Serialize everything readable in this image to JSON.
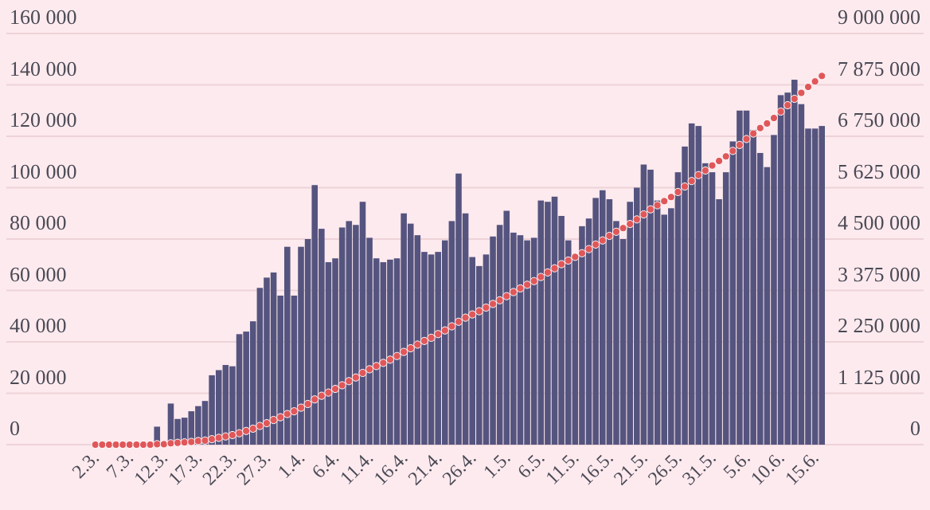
{
  "chart_data": {
    "type": "bar",
    "categories": [
      "2.3.",
      null,
      null,
      null,
      null,
      "7.3.",
      null,
      null,
      null,
      null,
      "12.3.",
      null,
      null,
      null,
      null,
      "17.3.",
      null,
      null,
      null,
      null,
      "22.3.",
      null,
      null,
      null,
      null,
      "27.3.",
      null,
      null,
      null,
      null,
      "1.4.",
      null,
      null,
      null,
      null,
      "6.4.",
      null,
      null,
      null,
      null,
      "11.4.",
      null,
      null,
      null,
      null,
      "16.4.",
      null,
      null,
      null,
      null,
      "21.4.",
      null,
      null,
      null,
      null,
      "26.4.",
      null,
      null,
      null,
      null,
      "1.5.",
      null,
      null,
      null,
      null,
      "6.5.",
      null,
      null,
      null,
      null,
      "11.5.",
      null,
      null,
      null,
      null,
      "16.5.",
      null,
      null,
      null,
      null,
      "21.5.",
      null,
      null,
      null,
      null,
      "26.5.",
      null,
      null,
      null,
      null,
      "31.5.",
      null,
      null,
      null,
      null,
      "5.6.",
      null,
      null,
      null,
      null,
      "10.6.",
      null,
      null,
      null,
      null,
      "15.6.",
      null
    ],
    "series": [
      {
        "color": "#55547f",
        "values": [
          0,
          0,
          0,
          0,
          0,
          0,
          0,
          500,
          null,
          7000,
          null,
          16000,
          10000,
          10500,
          13000,
          15000,
          17000,
          27000,
          29000,
          31000,
          30500,
          43000,
          44000,
          48000,
          61000,
          65000,
          67000,
          58000,
          77000,
          58000,
          77000,
          80000,
          101000,
          84000,
          71000,
          72500,
          84500,
          87000,
          85500,
          94500,
          80500,
          72500,
          71000,
          72000,
          72500,
          90000,
          86000,
          81500,
          75000,
          74000,
          75000,
          79500,
          87000,
          105500,
          90000,
          73000,
          69500,
          74000,
          81000,
          85500,
          91000,
          82500,
          81500,
          79500,
          80500,
          95000,
          94500,
          96500,
          89000,
          79500,
          73500,
          85000,
          88000,
          96000,
          99000,
          95500,
          87000,
          80000,
          94500,
          100000,
          109000,
          107000,
          95000,
          89500,
          92000,
          106000,
          116000,
          125000,
          124000,
          109500,
          106000,
          95500,
          106000,
          118000,
          130000,
          130000,
          122500,
          113500,
          108000,
          120500,
          136000,
          137000,
          142000,
          132500,
          123000,
          123000,
          124000
        ]
      },
      {
        "type": "scatter",
        "axis": "y2",
        "color": "#e0575a",
        "values": [
          0,
          0,
          0,
          0,
          0,
          0,
          0,
          0,
          0,
          10000,
          10000,
          30000,
          40000,
          50000,
          60000,
          80000,
          90000,
          120000,
          150000,
          180000,
          210000,
          250000,
          300000,
          350000,
          410000,
          470000,
          540000,
          600000,
          670000,
          730000,
          810000,
          890000,
          990000,
          1070000,
          1140000,
          1220000,
          1300000,
          1390000,
          1470000,
          1570000,
          1650000,
          1720000,
          1790000,
          1860000,
          1940000,
          2030000,
          2110000,
          2190000,
          2270000,
          2340000,
          2420000,
          2500000,
          2590000,
          2690000,
          2780000,
          2850000,
          2920000,
          3000000,
          3080000,
          3160000,
          3250000,
          3340000,
          3420000,
          3500000,
          3580000,
          3670000,
          3770000,
          3860000,
          3950000,
          4030000,
          4110000,
          4190000,
          4280000,
          4380000,
          4470000,
          4570000,
          4660000,
          4740000,
          4830000,
          4930000,
          5040000,
          5150000,
          5240000,
          5330000,
          5420000,
          5530000,
          5650000,
          5770000,
          5900000,
          6000000,
          6110000,
          6210000,
          6310000,
          6430000,
          6560000,
          6690000,
          6810000,
          6930000,
          7030000,
          7150000,
          7290000,
          7430000,
          7570000,
          7700000,
          7830000,
          7950000,
          8070000
        ]
      }
    ],
    "ylim": [
      0,
      160000
    ],
    "yticks": [
      {
        "value": 0,
        "label": "0"
      },
      {
        "value": 20000,
        "label": "20 000"
      },
      {
        "value": 40000,
        "label": "40 000"
      },
      {
        "value": 60000,
        "label": "60 000"
      },
      {
        "value": 80000,
        "label": "80 000"
      },
      {
        "value": 100000,
        "label": "100 000"
      },
      {
        "value": 120000,
        "label": "120 000"
      },
      {
        "value": 140000,
        "label": "140 000"
      },
      {
        "value": 160000,
        "label": "160 000"
      }
    ],
    "y2lim": [
      0,
      9000000
    ],
    "y2ticks": [
      {
        "value": 0,
        "label": "0"
      },
      {
        "value": 1125000,
        "label": "1 125 000"
      },
      {
        "value": 2250000,
        "label": "2 250 000"
      },
      {
        "value": 3375000,
        "label": "3 375 000"
      },
      {
        "value": 4500000,
        "label": "4 500 000"
      },
      {
        "value": 5625000,
        "label": "5 625 000"
      },
      {
        "value": 6750000,
        "label": "6 750 000"
      },
      {
        "value": 7875000,
        "label": "7 875 000"
      },
      {
        "value": 9000000,
        "label": "9 000 000"
      }
    ],
    "grid": "y",
    "marker": "circle"
  }
}
